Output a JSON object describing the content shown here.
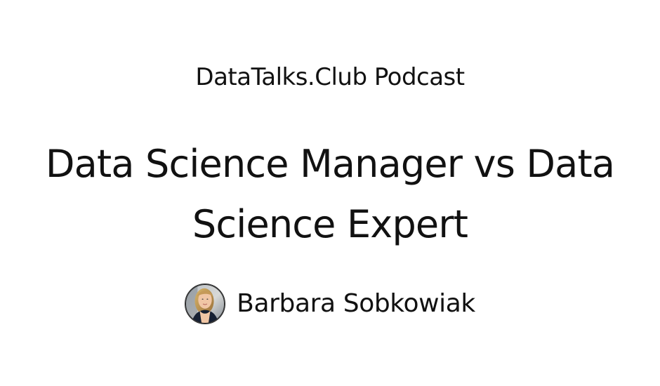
{
  "header": {
    "podcast_name": "DataTalks.Club Podcast"
  },
  "episode": {
    "title": "Data Science Manager vs Data Science Expert"
  },
  "guest": {
    "name": "Barbara Sobkowiak",
    "avatar_icon": "guest-portrait-photo"
  },
  "colors": {
    "background": "#ffffff",
    "text": "#111111"
  }
}
